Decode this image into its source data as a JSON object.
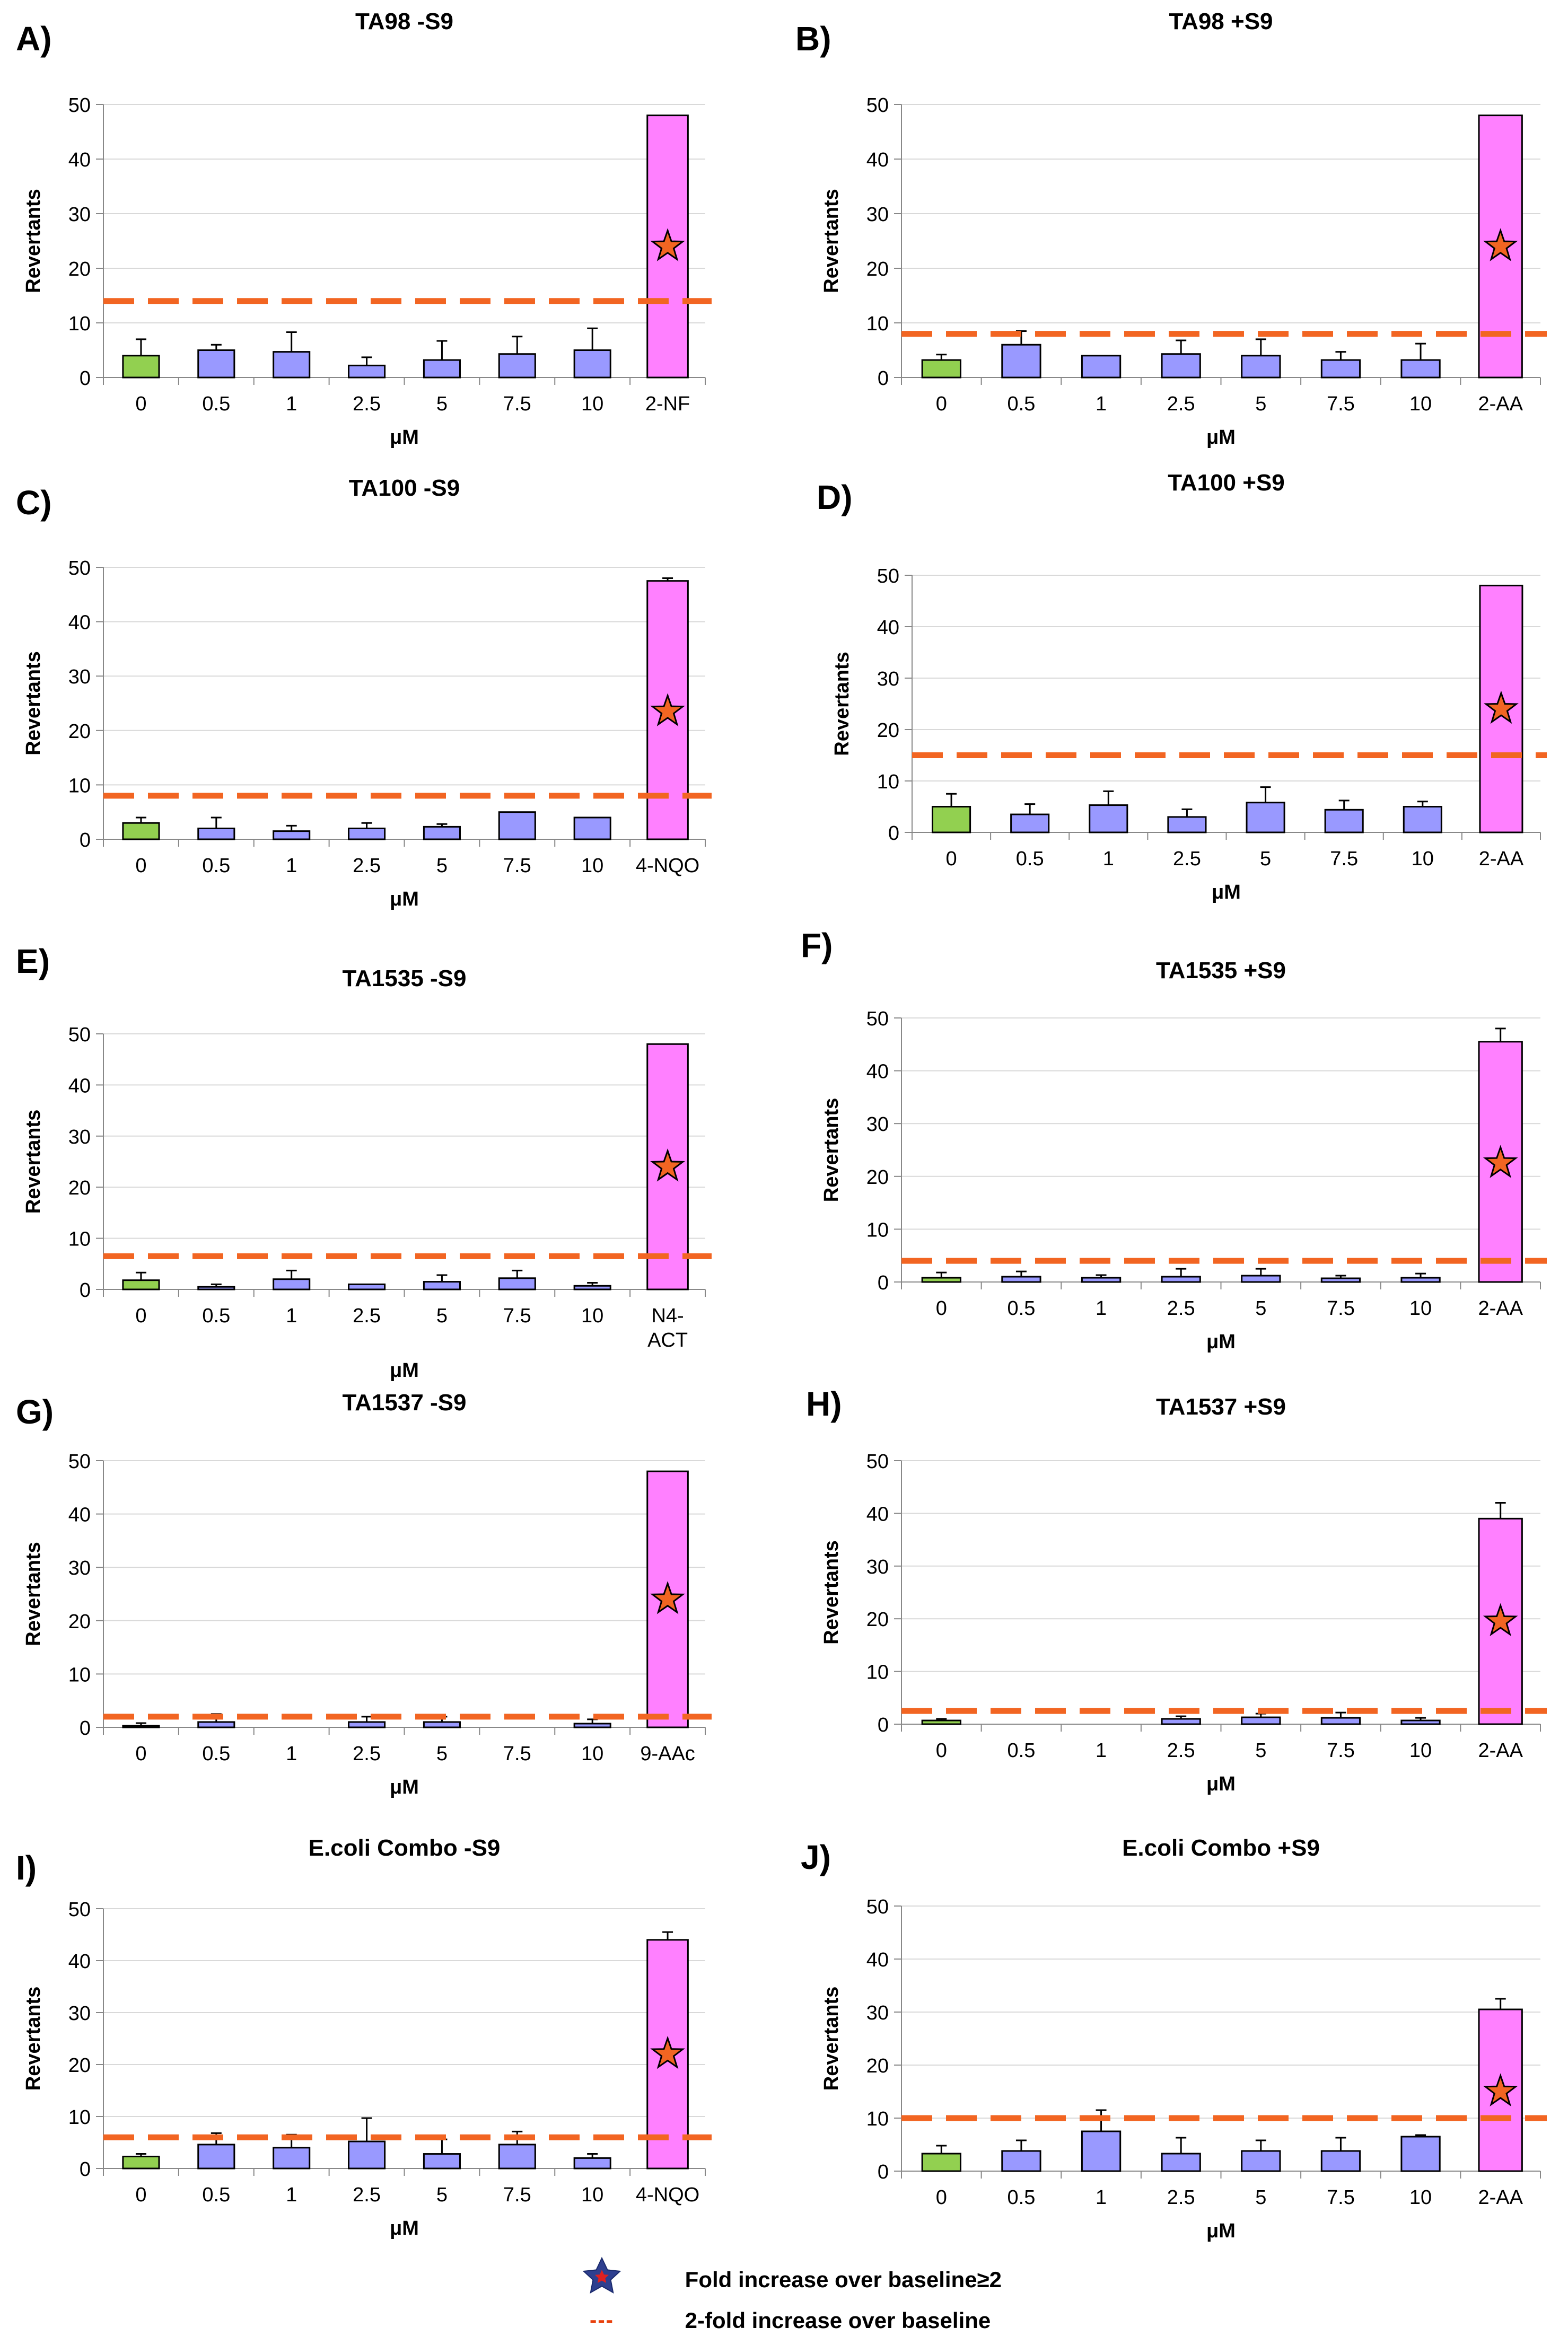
{
  "colors": {
    "control": "#92d050",
    "dose": "#9999ff",
    "positive": "#ff80ff",
    "threshold": "#f26522",
    "star": "#f26522",
    "grid": "#d9d9d9"
  },
  "legend": {
    "star_label": "Fold increase over baseline≥2",
    "dash_symbol": "---",
    "dash_label": "2-fold increase over baseline"
  },
  "chart_data": [
    {
      "type": "bar",
      "panel": "A)",
      "title": "TA98 -S9",
      "xlabel": "μM",
      "ylabel": "Revertants",
      "ylim": [
        0,
        50
      ],
      "yticks": [
        0,
        10,
        20,
        30,
        40,
        50
      ],
      "categories": [
        "0",
        "0.5",
        "1",
        "2.5",
        "5",
        "7.5",
        "10",
        "2-NF"
      ],
      "values": [
        4,
        5,
        4.7,
        2.2,
        3.2,
        4.3,
        5,
        48
      ],
      "errors": [
        3,
        1,
        3.6,
        1.5,
        3.5,
        3.2,
        4,
        0
      ],
      "roles": [
        "control",
        "dose",
        "dose",
        "dose",
        "dose",
        "dose",
        "dose",
        "positive"
      ],
      "star": [
        null,
        null,
        null,
        null,
        null,
        null,
        null,
        24
      ],
      "threshold": 14
    },
    {
      "type": "bar",
      "panel": "B)",
      "title": "TA98 +S9",
      "xlabel": "μM",
      "ylabel": "Revertants",
      "ylim": [
        0,
        50
      ],
      "yticks": [
        0,
        10,
        20,
        30,
        40,
        50
      ],
      "categories": [
        "0",
        "0.5",
        "1",
        "2.5",
        "5",
        "7.5",
        "10",
        "2-AA"
      ],
      "values": [
        3.2,
        6,
        4,
        4.3,
        4,
        3.2,
        3.2,
        48
      ],
      "errors": [
        1,
        2.5,
        0,
        2.5,
        3,
        1.5,
        3,
        0
      ],
      "roles": [
        "control",
        "dose",
        "dose",
        "dose",
        "dose",
        "dose",
        "dose",
        "positive"
      ],
      "star": [
        null,
        null,
        null,
        null,
        null,
        null,
        null,
        24
      ],
      "threshold": 8
    },
    {
      "type": "bar",
      "panel": "C)",
      "title": "TA100 -S9",
      "xlabel": "μM",
      "ylabel": "Revertants",
      "ylim": [
        0,
        50
      ],
      "yticks": [
        0,
        10,
        20,
        30,
        40,
        50
      ],
      "categories": [
        "0",
        "0.5",
        "1",
        "2.5",
        "5",
        "7.5",
        "10",
        "4-NQO"
      ],
      "values": [
        3,
        2,
        1.5,
        2,
        2.3,
        5,
        4,
        47.5
      ],
      "errors": [
        1,
        2,
        1,
        1,
        0.5,
        0,
        0,
        0.5
      ],
      "roles": [
        "control",
        "dose",
        "dose",
        "dose",
        "dose",
        "dose",
        "dose",
        "positive"
      ],
      "star": [
        null,
        null,
        null,
        null,
        null,
        null,
        null,
        23.5
      ],
      "threshold": 8
    },
    {
      "type": "bar",
      "panel": "D)",
      "title": "TA100 +S9",
      "xlabel": "μM",
      "ylabel": "Revertants",
      "ylim": [
        0,
        50
      ],
      "yticks": [
        0,
        10,
        20,
        30,
        40,
        50
      ],
      "categories": [
        "0",
        "0.5",
        "1",
        "2.5",
        "5",
        "7.5",
        "10",
        "2-AA"
      ],
      "values": [
        5,
        3.5,
        5.3,
        3,
        5.8,
        4.4,
        5,
        48
      ],
      "errors": [
        2.5,
        2,
        2.7,
        1.5,
        3,
        1.8,
        1,
        0
      ],
      "roles": [
        "control",
        "dose",
        "dose",
        "dose",
        "dose",
        "dose",
        "dose",
        "positive"
      ],
      "star": [
        null,
        null,
        null,
        null,
        null,
        null,
        null,
        24
      ],
      "threshold": 15
    },
    {
      "type": "bar",
      "panel": "E)",
      "title": "TA1535 -S9",
      "xlabel": "μM",
      "ylabel": "Revertants",
      "ylim": [
        0,
        50
      ],
      "yticks": [
        0,
        10,
        20,
        30,
        40,
        50
      ],
      "categories": [
        "0",
        "0.5",
        "1",
        "2.5",
        "5",
        "7.5",
        "10",
        "N4-\nACT"
      ],
      "values": [
        1.8,
        0.5,
        2,
        1,
        1.5,
        2.2,
        0.7,
        48
      ],
      "errors": [
        1.5,
        0.5,
        1.7,
        0,
        1.3,
        1.5,
        0.6,
        0
      ],
      "roles": [
        "control",
        "dose",
        "dose",
        "dose",
        "dose",
        "dose",
        "dose",
        "positive"
      ],
      "star": [
        null,
        null,
        null,
        null,
        null,
        null,
        null,
        24
      ],
      "threshold": 6.5
    },
    {
      "type": "bar",
      "panel": "F)",
      "title": "TA1535 +S9",
      "xlabel": "μM",
      "ylabel": "Revertants",
      "ylim": [
        0,
        50
      ],
      "yticks": [
        0,
        10,
        20,
        30,
        40,
        50
      ],
      "categories": [
        "0",
        "0.5",
        "1",
        "2.5",
        "5",
        "7.5",
        "10",
        "2-AA"
      ],
      "values": [
        0.8,
        1,
        0.8,
        1,
        1.2,
        0.7,
        0.8,
        45.5
      ],
      "errors": [
        1,
        1,
        0.5,
        1.5,
        1.3,
        0.5,
        0.8,
        2.5
      ],
      "roles": [
        "control",
        "dose",
        "dose",
        "dose",
        "dose",
        "dose",
        "dose",
        "positive"
      ],
      "star": [
        null,
        null,
        null,
        null,
        null,
        null,
        null,
        22.5
      ],
      "threshold": 4
    },
    {
      "type": "bar",
      "panel": "G)",
      "title": "TA1537 -S9",
      "xlabel": "μM",
      "ylabel": "Revertants",
      "ylim": [
        0,
        50
      ],
      "yticks": [
        0,
        10,
        20,
        30,
        40,
        50
      ],
      "categories": [
        "0",
        "0.5",
        "1",
        "2.5",
        "5",
        "7.5",
        "10",
        "9-AAc"
      ],
      "values": [
        0.3,
        1,
        0,
        1,
        1,
        0,
        0.7,
        48
      ],
      "errors": [
        0.5,
        1.5,
        0,
        1,
        1,
        0,
        0.8,
        0
      ],
      "roles": [
        "control",
        "dose",
        "dose",
        "dose",
        "dose",
        "dose",
        "dose",
        "positive"
      ],
      "star": [
        null,
        null,
        null,
        null,
        null,
        null,
        null,
        24
      ],
      "threshold": 2
    },
    {
      "type": "bar",
      "panel": "H)",
      "title": "TA1537 +S9",
      "xlabel": "μM",
      "ylabel": "Revertants",
      "ylim": [
        0,
        50
      ],
      "yticks": [
        0,
        10,
        20,
        30,
        40,
        50
      ],
      "categories": [
        "0",
        "0.5",
        "1",
        "2.5",
        "5",
        "7.5",
        "10",
        "2-AA"
      ],
      "values": [
        0.7,
        0,
        0,
        1,
        1.3,
        1.2,
        0.7,
        39
      ],
      "errors": [
        0.3,
        0,
        0,
        0.5,
        0.7,
        1,
        0.5,
        3
      ],
      "roles": [
        "control",
        "dose",
        "dose",
        "dose",
        "dose",
        "dose",
        "dose",
        "positive"
      ],
      "star": [
        null,
        null,
        null,
        null,
        null,
        null,
        null,
        19.5
      ],
      "threshold": 2.5
    },
    {
      "type": "bar",
      "panel": "I)",
      "title": "E.coli Combo -S9",
      "xlabel": "μM",
      "ylabel": "Revertants",
      "ylim": [
        0,
        50
      ],
      "yticks": [
        0,
        10,
        20,
        30,
        40,
        50
      ],
      "categories": [
        "0",
        "0.5",
        "1",
        "2.5",
        "5",
        "7.5",
        "10",
        "4-NQO"
      ],
      "values": [
        2.3,
        4.6,
        4,
        5.2,
        2.8,
        4.6,
        2,
        44
      ],
      "errors": [
        0.5,
        2.2,
        2.5,
        4.5,
        2.8,
        2.5,
        0.8,
        1.5
      ],
      "roles": [
        "control",
        "dose",
        "dose",
        "dose",
        "dose",
        "dose",
        "dose",
        "positive"
      ],
      "star": [
        null,
        null,
        null,
        null,
        null,
        null,
        null,
        22
      ],
      "threshold": 6
    },
    {
      "type": "bar",
      "panel": "J)",
      "title": "E.coli Combo +S9",
      "xlabel": "μM",
      "ylabel": "Revertants",
      "ylim": [
        0,
        50
      ],
      "yticks": [
        0,
        10,
        20,
        30,
        40,
        50
      ],
      "categories": [
        "0",
        "0.5",
        "1",
        "2.5",
        "5",
        "7.5",
        "10",
        "2-AA"
      ],
      "values": [
        3.3,
        3.8,
        7.5,
        3.3,
        3.8,
        3.8,
        6.5,
        30.5
      ],
      "errors": [
        1.5,
        2,
        4,
        3,
        2,
        2.5,
        0.3,
        2
      ],
      "roles": [
        "control",
        "dose",
        "dose",
        "dose",
        "dose",
        "dose",
        "dose",
        "positive"
      ],
      "star": [
        null,
        null,
        null,
        null,
        null,
        null,
        null,
        15
      ],
      "threshold": 10
    }
  ]
}
